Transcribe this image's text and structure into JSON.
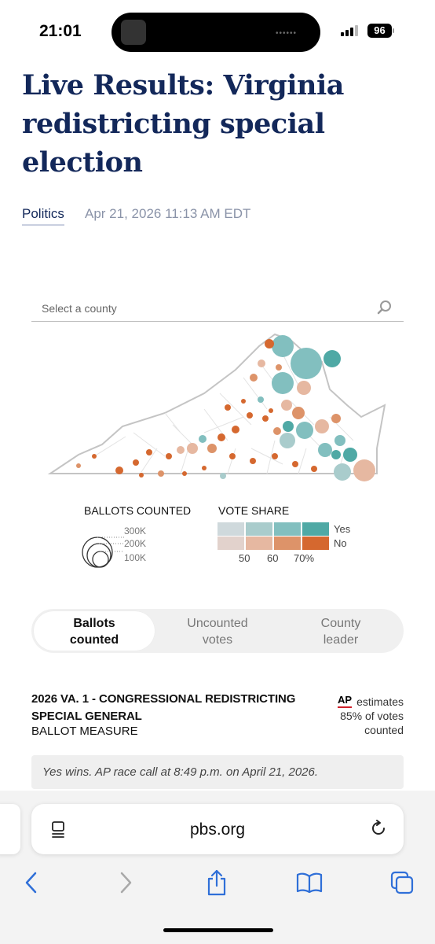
{
  "status_bar": {
    "time": "21:01",
    "battery": "96"
  },
  "article": {
    "headline_lines": [
      "Live Results: Virginia",
      "redistricting special",
      "election"
    ],
    "category": "Politics",
    "timestamp": "Apr 21, 2026 11:13 AM EDT"
  },
  "search": {
    "placeholder": "Select a county"
  },
  "legend": {
    "ballots_title": "BALLOTS COUNTED",
    "size_labels": [
      "300K",
      "200K",
      "100K"
    ],
    "share_title": "VOTE SHARE",
    "yes_label": "Yes",
    "no_label": "No",
    "share_ticks": [
      "50",
      "60",
      "70%"
    ],
    "colors": {
      "yes": [
        "#cfd9dc",
        "#a9cccc",
        "#82bfbf",
        "#4fa9a5"
      ],
      "no": [
        "#e2d2cc",
        "#e6b8a1",
        "#dd9369",
        "#d5682f"
      ]
    }
  },
  "tabs": [
    {
      "label": "Ballots counted",
      "active": true
    },
    {
      "label": "Uncounted votes",
      "active": false
    },
    {
      "label": "County leader",
      "active": false
    }
  ],
  "race": {
    "title_lines": [
      "2026 VA. 1 - CONGRESSIONAL REDISTRICTING",
      "SPECIAL GENERAL"
    ],
    "subtitle": "BALLOT MEASURE",
    "ap_logo": "AP",
    "ap_estimate_lines": [
      "estimates",
      "85% of votes",
      "counted"
    ],
    "call_text": "Yes wins. AP race call at 8:49 p.m. on April 21, 2026."
  },
  "browser": {
    "url": "pbs.org"
  },
  "icons": {
    "search": "search-icon",
    "reader": "reader-mode-icon",
    "reload": "reload-icon",
    "back": "back-chevron-icon",
    "forward": "forward-chevron-icon",
    "share": "share-icon",
    "bookmarks": "bookmarks-book-icon",
    "tabs": "tabs-icon"
  }
}
